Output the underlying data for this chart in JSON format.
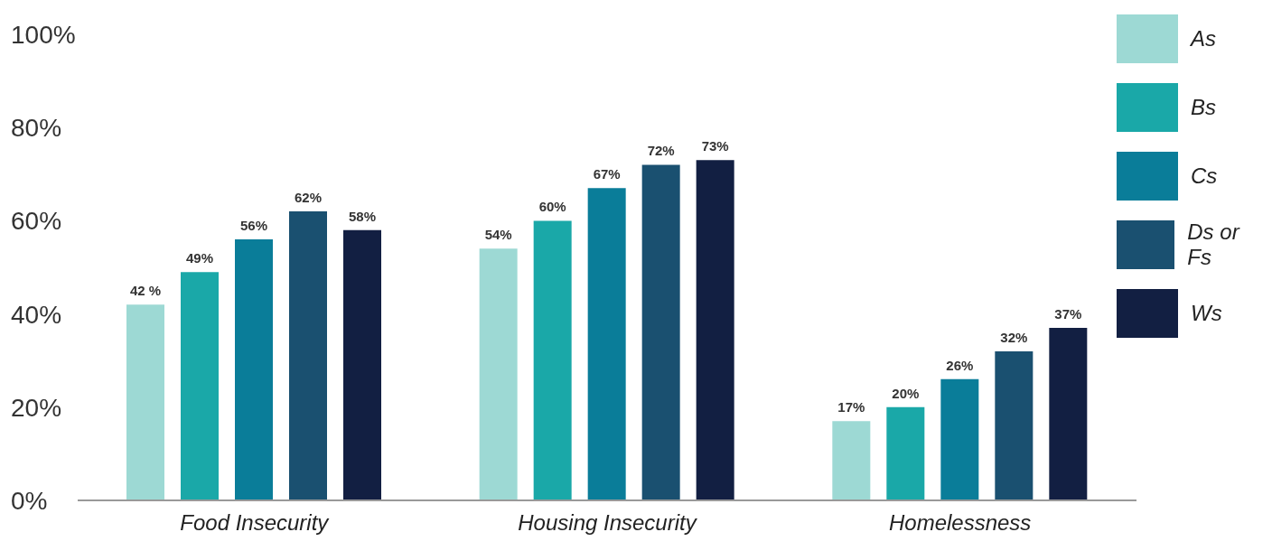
{
  "chart_data": {
    "type": "bar",
    "categories": [
      "Food Insecurity",
      "Housing Insecurity",
      "Homelessness"
    ],
    "series": [
      {
        "name": "As",
        "color": "#9dd9d4",
        "values": [
          42,
          54,
          17
        ],
        "value_labels": [
          "42 %",
          "54%",
          "17%"
        ]
      },
      {
        "name": "Bs",
        "color": "#1aa8a8",
        "values": [
          49,
          60,
          20
        ],
        "value_labels": [
          "49%",
          "60%",
          "20%"
        ]
      },
      {
        "name": "Cs",
        "color": "#0a7d99",
        "values": [
          56,
          67,
          26
        ],
        "value_labels": [
          "56%",
          "67%",
          "26%"
        ]
      },
      {
        "name": "Ds or Fs",
        "color": "#1a5070",
        "values": [
          62,
          72,
          32
        ],
        "value_labels": [
          "62%",
          "72%",
          "32%"
        ]
      },
      {
        "name": "Ws",
        "color": "#121f42",
        "values": [
          58,
          73,
          37
        ],
        "value_labels": [
          "58%",
          "73%",
          "37%"
        ]
      }
    ],
    "ylim": [
      0,
      100
    ],
    "yticks": [
      {
        "value": 0,
        "label": "0%"
      },
      {
        "value": 20,
        "label": "20%"
      },
      {
        "value": 40,
        "label": "40%"
      },
      {
        "value": 60,
        "label": "60%"
      },
      {
        "value": 80,
        "label": "80%"
      },
      {
        "value": 100,
        "label": "100%"
      }
    ],
    "grid": false,
    "legend": "top right"
  }
}
